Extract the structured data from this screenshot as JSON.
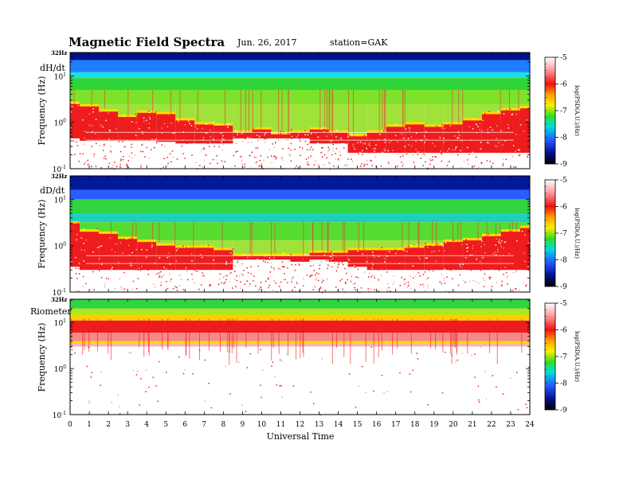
{
  "header": {
    "title": "Magnetic  Field  Spectra",
    "date": "Jun. 26, 2017",
    "station": "station=GAK"
  },
  "chart_data": [
    {
      "type": "heatmap",
      "panel_label": "dH/dt",
      "ylabel": "Frequency  (Hz)",
      "top_label": "32Hz",
      "y_scale": "log",
      "ylim": [
        0.1,
        32
      ],
      "y_ticks": [
        {
          "value": 0.1,
          "label": "10",
          "exp": "-1"
        },
        {
          "value": 1,
          "label": "10",
          "exp": "0"
        },
        {
          "value": 10,
          "label": "10",
          "exp": "1"
        }
      ],
      "xlim": [
        0,
        24
      ],
      "colorbar": {
        "label": "log(PSD(A.U.)/Hz)",
        "range": [
          -9,
          -5
        ],
        "ticks": [
          "-5",
          "-6",
          "-7",
          "-8",
          "-9"
        ]
      },
      "bands": [
        {
          "f_high": 32,
          "f_low": 22,
          "color": "#00138a"
        },
        {
          "f_high": 22,
          "f_low": 12,
          "color": "#1f7dff"
        },
        {
          "f_high": 12,
          "f_low": 9,
          "color": "#18e0e0"
        },
        {
          "f_high": 9,
          "f_low": 5,
          "color": "#2ed43a"
        },
        {
          "f_high": 5,
          "f_low": 2.5,
          "color": "#7de22a"
        }
      ],
      "red_boundary_hz": [
        2.5,
        2.2,
        1.7,
        1.3,
        1.6,
        1.5,
        1.1,
        0.9,
        0.85,
        0.6,
        0.7,
        0.55,
        0.6,
        0.7,
        0.6,
        0.5,
        0.6,
        0.8,
        0.9,
        0.8,
        0.9,
        1.1,
        1.5,
        1.8,
        2.0
      ],
      "white_top_hz": [
        0.45,
        0.4,
        0.4,
        0.4,
        0.4,
        0.38,
        0.35,
        0.35,
        0.35,
        0.45,
        0.45,
        0.45,
        0.45,
        0.35,
        0.35,
        0.22,
        0.22,
        0.22,
        0.22,
        0.22,
        0.22,
        0.22,
        0.22,
        0.22,
        0.22
      ]
    },
    {
      "type": "heatmap",
      "panel_label": "dD/dt",
      "ylabel": "Frequency  (Hz)",
      "top_label": "32Hz",
      "y_scale": "log",
      "ylim": [
        0.1,
        32
      ],
      "y_ticks": [
        {
          "value": 0.1,
          "label": "10",
          "exp": "-1"
        },
        {
          "value": 1,
          "label": "10",
          "exp": "0"
        },
        {
          "value": 10,
          "label": "10",
          "exp": "1"
        }
      ],
      "xlim": [
        0,
        24
      ],
      "colorbar": {
        "label": "log(PSD(A.U.)/Hz)",
        "range": [
          -9,
          -5
        ],
        "ticks": [
          "-5",
          "-6",
          "-7",
          "-8",
          "-9"
        ]
      },
      "bands": [
        {
          "f_high": 32,
          "f_low": 16,
          "color": "#001a9a"
        },
        {
          "f_high": 16,
          "f_low": 10,
          "color": "#2a5cff"
        },
        {
          "f_high": 10,
          "f_low": 5,
          "color": "#2fd440"
        },
        {
          "f_high": 5,
          "f_low": 3.2,
          "color": "#1ecfc0"
        },
        {
          "f_high": 3.2,
          "f_low": 1.3,
          "color": "#56dc30"
        }
      ],
      "red_boundary_hz": [
        3.0,
        2.0,
        1.8,
        1.4,
        1.2,
        1.0,
        0.9,
        0.9,
        0.8,
        0.6,
        0.6,
        0.6,
        0.6,
        0.7,
        0.7,
        0.8,
        0.8,
        0.8,
        0.9,
        1.0,
        1.2,
        1.3,
        1.6,
        2.0,
        2.4
      ],
      "white_top_hz": [
        0.35,
        0.3,
        0.3,
        0.3,
        0.3,
        0.3,
        0.3,
        0.3,
        0.3,
        0.5,
        0.5,
        0.5,
        0.45,
        0.5,
        0.45,
        0.35,
        0.3,
        0.3,
        0.3,
        0.3,
        0.3,
        0.3,
        0.3,
        0.3,
        0.3
      ]
    },
    {
      "type": "heatmap",
      "panel_label": "Riometer",
      "ylabel": "Frequency  (Hz)",
      "top_label": "32Hz",
      "y_scale": "log",
      "ylim": [
        0.1,
        32
      ],
      "y_ticks": [
        {
          "value": 0.1,
          "label": "10",
          "exp": "-1"
        },
        {
          "value": 1,
          "label": "10",
          "exp": "0"
        },
        {
          "value": 10,
          "label": "10",
          "exp": "1"
        }
      ],
      "xlim": [
        0,
        24
      ],
      "xlabel": "Universal Time",
      "x_ticks": [
        "0",
        "1",
        "2",
        "3",
        "4",
        "5",
        "6",
        "7",
        "8",
        "9",
        "10",
        "11",
        "12",
        "13",
        "14",
        "15",
        "16",
        "17",
        "18",
        "19",
        "20",
        "21",
        "22",
        "23",
        "24"
      ],
      "colorbar": {
        "label": "log(PSD(A.U.)/Hz)",
        "range": [
          -9,
          -5
        ],
        "ticks": [
          "-5",
          "-6",
          "-7",
          "-8",
          "-9"
        ]
      },
      "bands": [
        {
          "f_high": 32,
          "f_low": 20,
          "color": "#2fd440"
        },
        {
          "f_high": 20,
          "f_low": 14,
          "color": "#b5e61d"
        },
        {
          "f_high": 14,
          "f_low": 11,
          "color": "#ffcc00"
        },
        {
          "f_high": 11,
          "f_low": 6,
          "color": "#ee1c1c"
        },
        {
          "f_high": 6,
          "f_low": 3.5,
          "color": "#f58a8a"
        }
      ],
      "red_boundary_hz": [
        3.5
      ],
      "white_top_hz": [
        3.0
      ]
    }
  ]
}
